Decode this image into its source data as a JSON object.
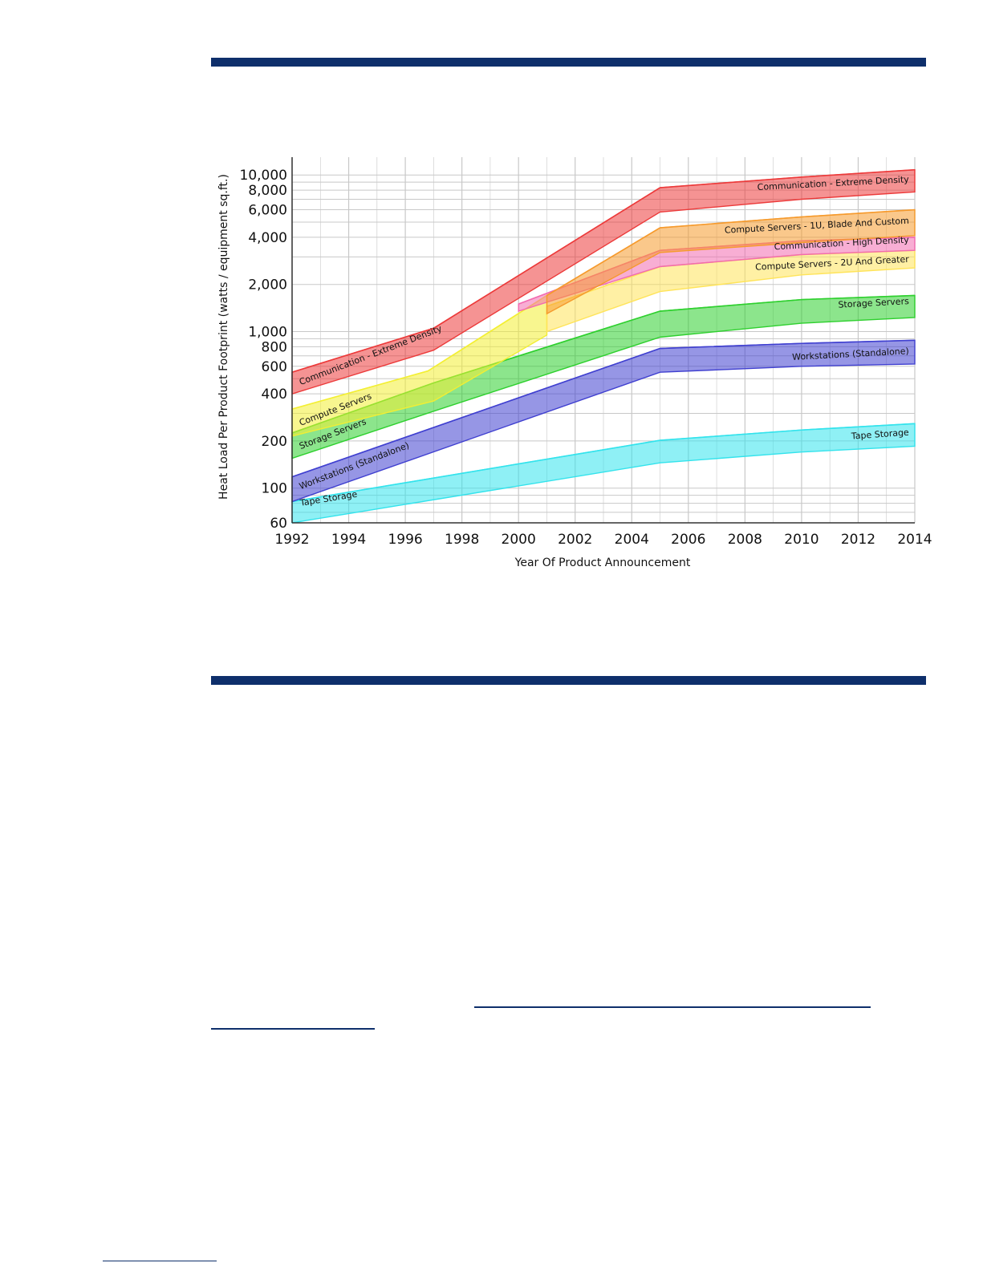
{
  "colors": {
    "rule": "#0e2f6b",
    "grid": "#c8c8c8",
    "axis": "#333333"
  },
  "chart_data": {
    "type": "area",
    "chart_subtype": "range-band",
    "xlabel": "Year Of Product Announcement",
    "ylabel": "Heat Load Per Product Footprint (watts / equipment sq.ft.)",
    "y_scale": "log",
    "xlim": [
      1992,
      2014
    ],
    "ylim": [
      60,
      10000
    ],
    "x_ticks": [
      "1992",
      "1994",
      "1996",
      "1998",
      "2000",
      "2002",
      "2004",
      "2006",
      "2008",
      "2010",
      "2012",
      "2014"
    ],
    "y_ticks": [
      {
        "value": 60,
        "label": "60"
      },
      {
        "value": 100,
        "label": "100"
      },
      {
        "value": 200,
        "label": "200"
      },
      {
        "value": 400,
        "label": "400"
      },
      {
        "value": 600,
        "label": "600"
      },
      {
        "value": 800,
        "label": "800"
      },
      {
        "value": 1000,
        "label": "1,000"
      },
      {
        "value": 2000,
        "label": "2,000"
      },
      {
        "value": 4000,
        "label": "4,000"
      },
      {
        "value": 6000,
        "label": "6,000"
      },
      {
        "value": 8000,
        "label": "8,000"
      },
      {
        "value": 10000,
        "label": "10,000"
      }
    ],
    "grid": true,
    "series": [
      {
        "name": "Tape Storage",
        "color": "#33e3ec",
        "labels": [
          {
            "text": "Tape Storage",
            "year": 1992.3,
            "value": 77,
            "angle": -9
          },
          {
            "text": "Tape Storage",
            "year": 2013.8,
            "value": 218,
            "angle": -4,
            "anchor": "end"
          }
        ],
        "upper": [
          [
            1992,
            82
          ],
          [
            2005,
            202
          ],
          [
            2010,
            235
          ],
          [
            2014,
            258
          ]
        ],
        "lower": [
          [
            1992,
            60
          ],
          [
            2005,
            145
          ],
          [
            2010,
            170
          ],
          [
            2014,
            185
          ]
        ]
      },
      {
        "name": "Workstations (Standalone)",
        "color": "#4040d0",
        "labels": [
          {
            "text": "Workstations (Standalone)",
            "year": 1992.3,
            "value": 98,
            "angle": -21
          },
          {
            "text": "Workstations (Standalone)",
            "year": 2013.8,
            "value": 720,
            "angle": -3,
            "anchor": "end"
          }
        ],
        "upper": [
          [
            1992,
            118
          ],
          [
            2005,
            780
          ],
          [
            2010,
            840
          ],
          [
            2014,
            880
          ]
        ],
        "lower": [
          [
            1992,
            82
          ],
          [
            2005,
            550
          ],
          [
            2010,
            600
          ],
          [
            2014,
            620
          ]
        ]
      },
      {
        "name": "Storage Servers",
        "color": "#2ed02e",
        "labels": [
          {
            "text": "Storage Servers",
            "year": 1992.3,
            "value": 177,
            "angle": -21
          },
          {
            "text": "Storage Servers",
            "year": 2013.8,
            "value": 1500,
            "angle": -3,
            "anchor": "end"
          }
        ],
        "upper": [
          [
            1992,
            225
          ],
          [
            1997,
            470
          ],
          [
            2005,
            1350
          ],
          [
            2010,
            1600
          ],
          [
            2014,
            1700
          ]
        ],
        "lower": [
          [
            1992,
            155
          ],
          [
            1997,
            310
          ],
          [
            2005,
            920
          ],
          [
            2010,
            1130
          ],
          [
            2014,
            1230
          ]
        ]
      },
      {
        "name": "Compute Servers",
        "color": "#f2ee33",
        "labels": [
          {
            "text": "Compute Servers",
            "year": 1992.3,
            "value": 250,
            "angle": -21
          }
        ],
        "upper": [
          [
            1992,
            320
          ],
          [
            1996.8,
            560
          ],
          [
            2001,
            1700
          ]
        ],
        "lower": [
          [
            1992,
            215
          ],
          [
            1997,
            360
          ],
          [
            2001,
            950
          ]
        ]
      },
      {
        "name": "Compute Servers - 2U And Greater",
        "color": "#ffe45a",
        "labels": [
          {
            "text": "Compute Servers - 2U And Greater",
            "year": 2013.8,
            "value": 2780,
            "angle": -3,
            "anchor": "end"
          }
        ],
        "upper": [
          [
            2001,
            1450
          ],
          [
            2005,
            2600
          ],
          [
            2010,
            3100
          ],
          [
            2014,
            3300
          ]
        ],
        "lower": [
          [
            2001,
            1000
          ],
          [
            2005,
            1800
          ],
          [
            2010,
            2300
          ],
          [
            2014,
            2550
          ]
        ]
      },
      {
        "name": "Communication - High Density",
        "color": "#f26bb0",
        "labels": [
          {
            "text": "Communication - High Density",
            "year": 2013.8,
            "value": 3700,
            "angle": -3,
            "anchor": "end"
          }
        ],
        "upper": [
          [
            2000,
            1500
          ],
          [
            2005,
            3300
          ],
          [
            2010,
            3800
          ],
          [
            2014,
            4000
          ]
        ],
        "lower": [
          [
            2000,
            1350
          ],
          [
            2005,
            2600
          ],
          [
            2010,
            3100
          ],
          [
            2014,
            3300
          ]
        ]
      },
      {
        "name": "Compute Servers - 1U, Blade And Custom",
        "color": "#f59a2c",
        "labels": [
          {
            "text": "Compute Servers - 1U, Blade And Custom",
            "year": 2013.8,
            "value": 4900,
            "angle": -3,
            "anchor": "end"
          }
        ],
        "upper": [
          [
            2001,
            1700
          ],
          [
            2005,
            4600
          ],
          [
            2010,
            5400
          ],
          [
            2014,
            6000
          ]
        ],
        "lower": [
          [
            2001,
            1300
          ],
          [
            2005,
            3200
          ],
          [
            2010,
            3700
          ],
          [
            2014,
            4100
          ]
        ]
      },
      {
        "name": "Communication - Extreme Density",
        "color": "#ec3a3a",
        "labels": [
          {
            "text": "Communication - Extreme Density",
            "year": 1992.3,
            "value": 455,
            "angle": -21
          },
          {
            "text": "Communication - Extreme Density",
            "year": 2013.8,
            "value": 9000,
            "angle": -3,
            "anchor": "end"
          }
        ],
        "upper": [
          [
            1992,
            550
          ],
          [
            1997,
            1050
          ],
          [
            2005,
            8300
          ],
          [
            2010,
            9700
          ],
          [
            2014,
            10800
          ]
        ],
        "lower": [
          [
            1992,
            400
          ],
          [
            1997,
            760
          ],
          [
            2005,
            5800
          ],
          [
            2010,
            7000
          ],
          [
            2014,
            7800
          ]
        ]
      }
    ]
  }
}
